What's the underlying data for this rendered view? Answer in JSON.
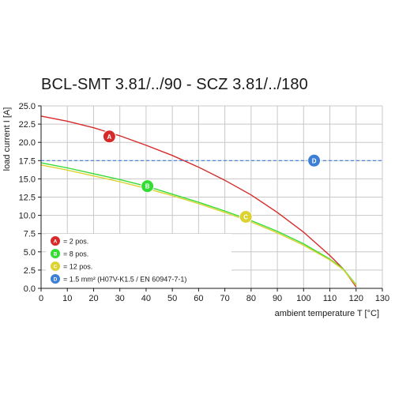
{
  "chart_data": {
    "type": "line",
    "title": "BCL-SMT 3.81/../90 - SCZ 3.81/../180",
    "xlabel": "ambient temperature T [°C]",
    "ylabel": "load current I [A]",
    "xlim": [
      0,
      130
    ],
    "ylim": [
      0,
      25
    ],
    "x_ticks": [
      0,
      10,
      20,
      30,
      40,
      50,
      60,
      70,
      80,
      90,
      100,
      110,
      120,
      130
    ],
    "y_ticks": [
      0,
      2.5,
      5,
      7.5,
      10,
      12.5,
      15,
      17.5,
      20,
      22.5,
      25
    ],
    "grid": true,
    "legend_position": "bottom-left",
    "series": [
      {
        "marker": "A",
        "name": "= 2 pos.",
        "color": "#d62a2a",
        "style": "solid",
        "x": [
          0,
          10,
          20,
          30,
          40,
          50,
          60,
          70,
          80,
          90,
          100,
          110,
          115,
          120
        ],
        "y": [
          23.6,
          22.9,
          22.0,
          20.9,
          19.6,
          18.2,
          16.6,
          14.8,
          12.8,
          10.4,
          7.7,
          4.5,
          2.7,
          0.2
        ]
      },
      {
        "marker": "B",
        "name": "= 8 pos.",
        "color": "#33dd33",
        "style": "solid",
        "x": [
          0,
          10,
          20,
          30,
          40,
          50,
          60,
          70,
          80,
          90,
          100,
          110,
          115,
          120
        ],
        "y": [
          17.2,
          16.5,
          15.7,
          14.9,
          14.0,
          12.9,
          11.8,
          10.6,
          9.3,
          7.8,
          6.1,
          4.0,
          2.7,
          0.5
        ]
      },
      {
        "marker": "C",
        "name": "= 12 pos.",
        "color": "#dcd231",
        "style": "solid",
        "x": [
          0,
          10,
          20,
          30,
          40,
          50,
          60,
          70,
          80,
          90,
          100,
          110,
          115,
          120
        ],
        "y": [
          16.9,
          16.2,
          15.4,
          14.6,
          13.7,
          12.7,
          11.6,
          10.4,
          9.1,
          7.6,
          5.9,
          3.9,
          2.6,
          0.4
        ]
      },
      {
        "marker": "D",
        "name": "= 1.5 mm² (H07V-K1.5 / EN 60947-7-1)",
        "color": "#3d7fd6",
        "style": "dashed",
        "x": [
          0,
          130
        ],
        "y": [
          17.5,
          17.5
        ]
      }
    ],
    "marker_positions": [
      {
        "marker": "A",
        "x": 26,
        "y": 20.8
      },
      {
        "marker": "B",
        "x": 40.5,
        "y": 14.0
      },
      {
        "marker": "C",
        "x": 78,
        "y": 9.8
      },
      {
        "marker": "D",
        "x": 104,
        "y": 17.5
      }
    ]
  }
}
